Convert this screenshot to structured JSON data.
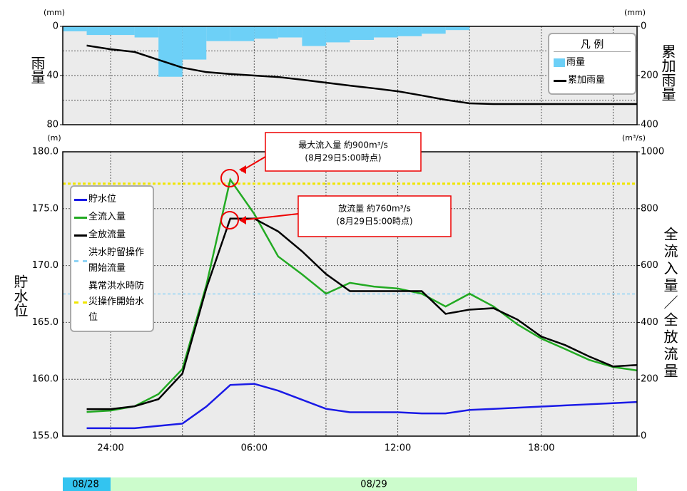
{
  "chart_data": [
    {
      "type": "bar",
      "y_unit": "(mm)",
      "y2_unit": "(mm)",
      "y_label": "雨量",
      "y2_label": "累加雨量",
      "xlim": [
        -2,
        22
      ],
      "xgrid": [
        0,
        3,
        6,
        9,
        12,
        15,
        18,
        21
      ],
      "ylim": [
        0,
        80
      ],
      "y_inverted": true,
      "yticks": [
        0,
        40,
        80
      ],
      "ygrid": [
        20,
        40,
        60
      ],
      "y2lim": [
        0,
        400
      ],
      "y2_inverted": true,
      "y2ticks": [
        0,
        200,
        400
      ],
      "legend_title": "凡 例",
      "legend": "upper right",
      "series": [
        {
          "name": "雨量",
          "color": "#6dd0f7",
          "bins": [
            -2,
            -1,
            0,
            1,
            2,
            3,
            4,
            5,
            6,
            7,
            8,
            9,
            10,
            11,
            12,
            13,
            14,
            15
          ],
          "values": [
            4,
            7,
            7,
            9,
            41,
            27,
            12,
            12,
            10,
            9,
            16,
            13,
            11,
            9,
            8,
            6,
            3
          ]
        },
        {
          "name": "累加雨量",
          "color": "#000000",
          "axis": "y2",
          "x": [
            -1,
            0,
            1,
            2,
            3,
            4,
            5,
            6,
            7,
            8,
            9,
            10,
            11,
            12,
            13,
            14,
            15,
            16,
            17,
            18,
            19,
            20,
            21,
            22
          ],
          "values": [
            78,
            93,
            104,
            136,
            168,
            186,
            194,
            200,
            206,
            217,
            229,
            241,
            252,
            264,
            281,
            299,
            313,
            316,
            316,
            316,
            316,
            316,
            316,
            316
          ]
        }
      ]
    },
    {
      "type": "line",
      "y_unit": "(m)",
      "y2_unit": "(m³/s)",
      "y_label": "貯水位",
      "y2_label": "全流入量／全放流量",
      "xlim": [
        -2,
        22
      ],
      "xticks": [
        {
          "value": 0,
          "label": "24:00"
        },
        {
          "value": 6,
          "label": "06:00"
        },
        {
          "value": 12,
          "label": "12:00"
        },
        {
          "value": 18,
          "label": "18:00"
        }
      ],
      "xgrid": [
        3,
        9,
        15,
        21
      ],
      "ylim": [
        155,
        180
      ],
      "yticks": [
        {
          "value": 155,
          "label": "155.0"
        },
        {
          "value": 160,
          "label": "160.0"
        },
        {
          "value": 165,
          "label": "165.0"
        },
        {
          "value": 170,
          "label": "170.0"
        },
        {
          "value": 175,
          "label": "175.0"
        },
        {
          "value": 180,
          "label": "180.0"
        }
      ],
      "y2lim": [
        0,
        1000
      ],
      "y2ticks": [
        0,
        200,
        400,
        600,
        800,
        1000
      ],
      "legend": "upper left",
      "x": [
        -1,
        0,
        1,
        2,
        3,
        4,
        5,
        6,
        7,
        8,
        9,
        10,
        11,
        12,
        13,
        14,
        15,
        16,
        17,
        18,
        19,
        20,
        21,
        22
      ],
      "series": [
        {
          "name": "貯水位",
          "color": "#1a1ae6",
          "values": [
            155.7,
            155.7,
            155.7,
            155.9,
            156.1,
            157.6,
            159.5,
            159.6,
            159.0,
            158.2,
            157.4,
            157.1,
            157.1,
            157.1,
            157.0,
            157.0,
            157.3,
            157.4,
            157.5,
            157.6,
            157.7,
            157.8,
            157.9,
            158.0
          ]
        },
        {
          "name": "全流入量",
          "color": "#22aa22",
          "axis": "y2",
          "values": [
            85,
            90,
            105,
            148,
            236,
            531,
            902,
            782,
            632,
            569,
            501,
            539,
            526,
            519,
            501,
            456,
            501,
            456,
            393,
            343,
            306,
            268,
            243,
            231
          ]
        },
        {
          "name": "全放流量",
          "color": "#000000",
          "axis": "y2",
          "values": [
            95,
            95,
            105,
            130,
            220,
            520,
            765,
            765,
            720,
            650,
            570,
            510,
            510,
            510,
            510,
            430,
            445,
            450,
            410,
            350,
            320,
            280,
            245,
            250
          ]
        }
      ],
      "reference_lines": [
        {
          "name": "洪水貯留操作開始流量",
          "color": "#8fd3f5",
          "axis": "y2",
          "value": 500
        },
        {
          "name": "異常洪水時防災操作開始水位",
          "color": "#f0e600",
          "axis": "y",
          "value": 177.2
        }
      ],
      "annotations": [
        {
          "lines": [
            "最大流入量 約900m³/s",
            "(8月29日5:00時点)"
          ]
        },
        {
          "lines": [
            "放流量 約760m³/s",
            "(8月29日5:00時点)"
          ]
        }
      ],
      "date_bands": [
        {
          "label": "08/28",
          "color": "#33c4f0"
        },
        {
          "label": "08/29",
          "color": "#ccfccc"
        }
      ]
    }
  ]
}
